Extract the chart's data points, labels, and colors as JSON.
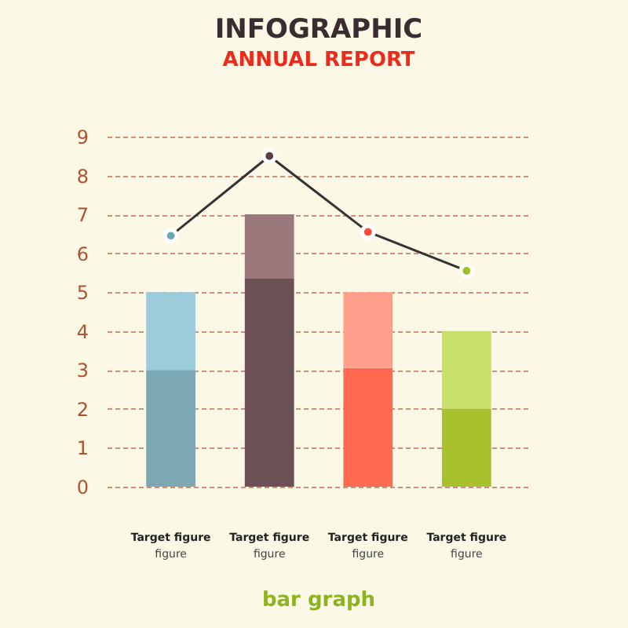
{
  "chart_data": {
    "type": "bar",
    "title": "INFOGRAPHIC",
    "subtitle": "ANNUAL REPORT",
    "categories": [
      "Target figure",
      "Target figure",
      "Target figure",
      "Target figure"
    ],
    "stacked": true,
    "series": [
      {
        "colors": [
          "#7ba8b2",
          "#6b5156",
          "#ff6a50",
          "#a8c12e"
        ],
        "values": [
          3,
          5.35,
          3.05,
          2
        ]
      },
      {
        "colors": [
          "#9ecbdc",
          "#9a787b",
          "#ffa08c",
          "#c6e06a"
        ],
        "values": [
          2,
          1.65,
          1.95,
          2
        ]
      },
      {
        "type": "line",
        "color": "#333333",
        "colors": [
          "#6aa6b8",
          "#5a3f45",
          "#ff4a3a",
          "#9cc02a"
        ],
        "marker": "circle",
        "values": [
          6.45,
          8.5,
          6.55,
          5.55
        ]
      }
    ],
    "ylim": [
      0,
      9
    ],
    "yticks": [
      0,
      1,
      2,
      3,
      4,
      5,
      6,
      7,
      8,
      9
    ],
    "grid": "y",
    "annotations": [
      "figure",
      "figure",
      "figure",
      "figure",
      "bar graph"
    ]
  }
}
